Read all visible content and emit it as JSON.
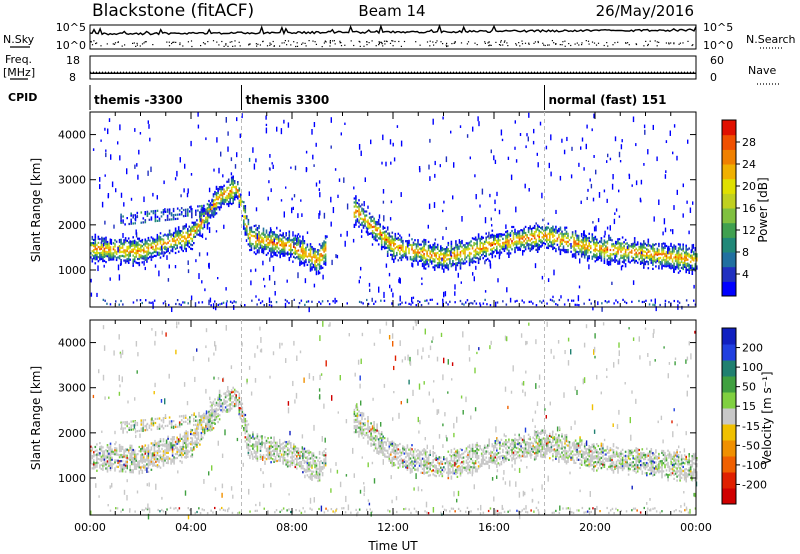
{
  "header": {
    "station": "Blackstone (fitACF)",
    "beam": "Beam 14",
    "date": "26/May/2016"
  },
  "side_labels": {
    "nsky": "N.Sky",
    "nsearch": "N.Search",
    "freq_line1": "Freq.",
    "freq_line2": "[MHz]",
    "nave": "Nave",
    "cpid": "CPID"
  },
  "chart_data": [
    {
      "type": "line",
      "name": "noise-panel",
      "yticks_left": [
        "10^5",
        "10^0"
      ],
      "yticks_right": [
        "10^5",
        "10^0"
      ],
      "series": [
        {
          "name": "N.Sky",
          "style": "solid"
        },
        {
          "name": "N.Search",
          "style": "dotted"
        }
      ]
    },
    {
      "type": "line",
      "name": "freq-panel",
      "yticks_left": [
        18,
        8
      ],
      "yticks_right": [
        60,
        0
      ],
      "series": [
        {
          "name": "Freq.",
          "style": "solid",
          "x": [
            0,
            24
          ],
          "values": [
            10.5,
            10.5
          ]
        },
        {
          "name": "Nave",
          "style": "dotted",
          "x": [
            0,
            24
          ],
          "values": [
            18,
            18
          ]
        }
      ]
    },
    {
      "type": "table",
      "name": "cpid-panel",
      "segments": [
        {
          "label": "themis -3300",
          "start": 0,
          "end": 6
        },
        {
          "label": "themis 3300",
          "start": 6,
          "end": 18
        },
        {
          "label": "normal (fast) 151",
          "start": 18,
          "end": 24
        }
      ]
    },
    {
      "type": "heatmap",
      "name": "power-panel",
      "ylabel": "Slant Range [km]",
      "ylim": [
        180,
        4500
      ],
      "yticks": [
        1000,
        2000,
        3000,
        4000
      ],
      "xlim": [
        0,
        24
      ],
      "colorbar": {
        "label": "Power [dB]",
        "ticks": [
          4,
          8,
          12,
          16,
          20,
          24,
          28
        ],
        "range": [
          0,
          32
        ],
        "colors": [
          "#0000ff",
          "#2030c0",
          "#2070a0",
          "#208878",
          "#40a050",
          "#80c040",
          "#c0d020",
          "#e0e000",
          "#f0b000",
          "#f08000",
          "#f05000",
          "#e01000"
        ]
      }
    },
    {
      "type": "heatmap",
      "name": "velocity-panel",
      "ylabel": "Slant Range [km]",
      "ylim": [
        180,
        4500
      ],
      "yticks": [
        1000,
        2000,
        3000,
        4000
      ],
      "xlim": [
        0,
        24
      ],
      "xticks": [
        "00:00",
        "04:00",
        "08:00",
        "12:00",
        "16:00",
        "20:00",
        "00:00"
      ],
      "xlabel": "Time UT",
      "colorbar": {
        "label": "Velocity [m s⁻¹]",
        "ticks": [
          "200",
          "100",
          "50",
          "15",
          "-15",
          "-50",
          "-100",
          "-200"
        ],
        "colors": [
          "#1020c0",
          "#2040e0",
          "#208070",
          "#40a040",
          "#80d040",
          "#c8c8c8",
          "#f0c000",
          "#f09000",
          "#f06000",
          "#e02000",
          "#d00000"
        ]
      }
    }
  ]
}
